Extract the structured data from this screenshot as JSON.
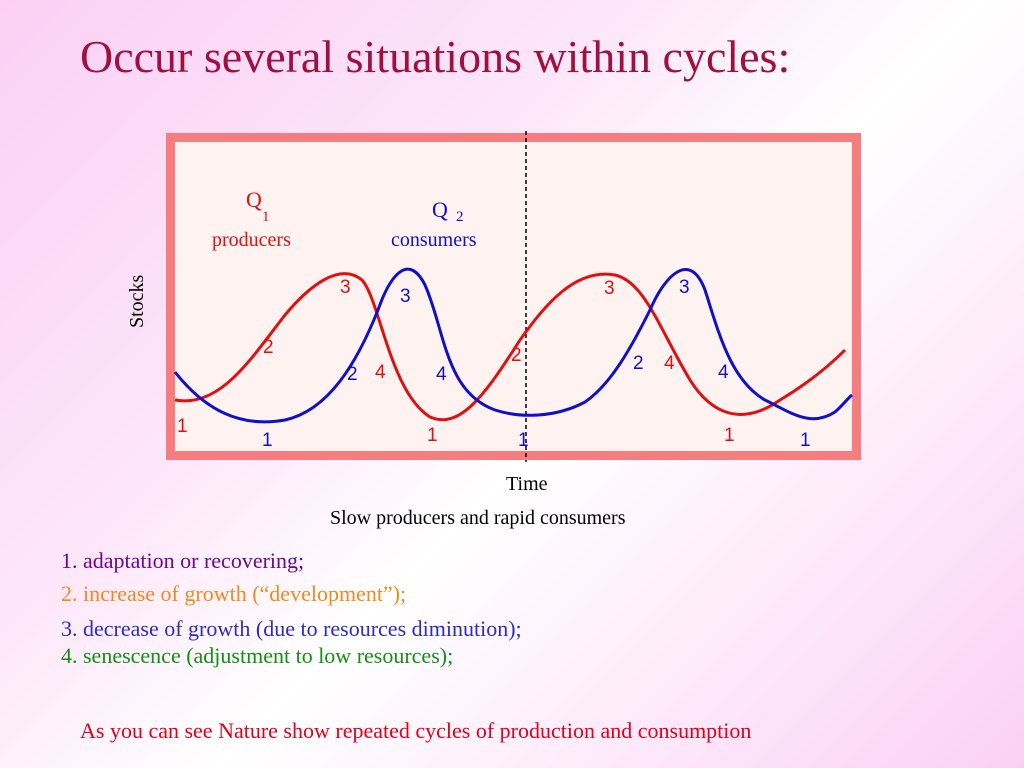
{
  "slide": {
    "title": "Occur several situations within cycles:",
    "caption": "Slow producers and rapid consumers",
    "conclusion": "As you can see Nature show repeated cycles of production and consumption"
  },
  "diagram": {
    "y_axis_label": "Stocks",
    "x_axis_label": "Time",
    "producers": {
      "symbol": "Q",
      "subscript": "1",
      "label": "producers",
      "color": "#e01010"
    },
    "consumers": {
      "symbol": "Q",
      "subscript": "2",
      "label": "consumers",
      "color": "#1010c8"
    },
    "frame_color": "#f57d80",
    "stage_numbers": {
      "red": [
        "1",
        "2",
        "3",
        "4",
        "1",
        "2",
        "3",
        "4",
        "1"
      ],
      "blue": [
        "1",
        "2",
        "3",
        "4",
        "1",
        "2",
        "3",
        "4",
        "1"
      ]
    }
  },
  "stages": [
    {
      "text": "1. adaptation or recovering;",
      "color": "#6a0a8a"
    },
    {
      "text": "2. increase of growth (“development”);",
      "color": "#f08a1c"
    },
    {
      "text": "3. decrease of growth (due to  resources diminution);",
      "color": "#2c2cc0"
    },
    {
      "text": "4. senescence (adjustment to low resources);",
      "color": "#138f13"
    }
  ]
}
